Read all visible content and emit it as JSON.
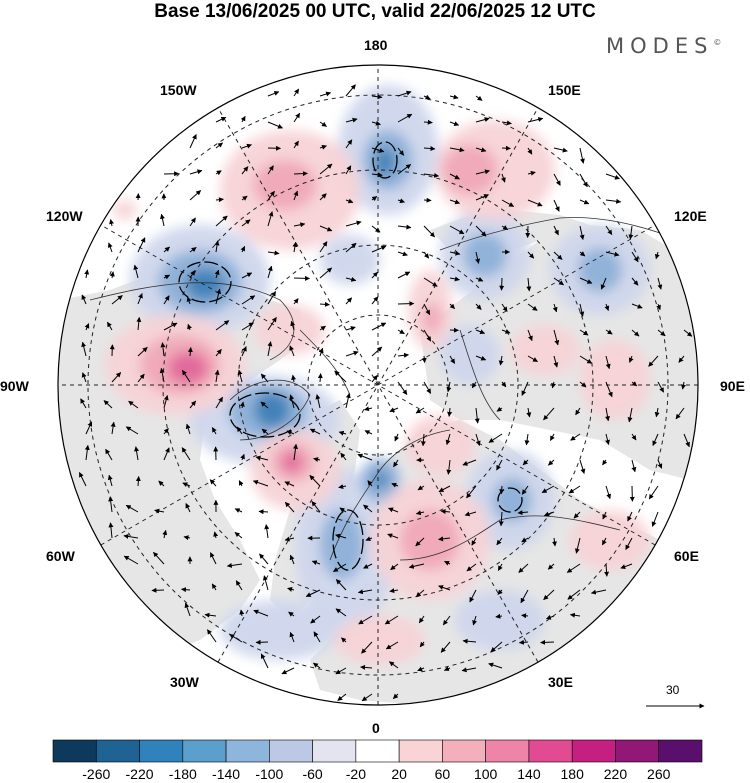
{
  "title": "Base 13/06/2025 00 UTC, valid 22/06/2025 12 UTC",
  "brand": {
    "name": "MODES",
    "mark": "©"
  },
  "longitude_labels": [
    {
      "id": "180",
      "text": "180"
    },
    {
      "id": "150E",
      "text": "150E"
    },
    {
      "id": "120E",
      "text": "120E"
    },
    {
      "id": "90E",
      "text": "90E"
    },
    {
      "id": "60E",
      "text": "60E"
    },
    {
      "id": "30E",
      "text": "30E"
    },
    {
      "id": "0",
      "text": "0"
    },
    {
      "id": "30W",
      "text": "30W"
    },
    {
      "id": "60W",
      "text": "60W"
    },
    {
      "id": "90W",
      "text": "90W"
    },
    {
      "id": "120W",
      "text": "120W"
    },
    {
      "id": "150W",
      "text": "150W"
    }
  ],
  "wind_scale": {
    "value": "30"
  },
  "colorbar": {
    "colors": [
      "#0d3a5c",
      "#1e6394",
      "#2f82bc",
      "#5b9fcd",
      "#8eb6dc",
      "#bcc9e5",
      "#e4e4f1",
      "#ffffff",
      "#f9d4d6",
      "#f4afbd",
      "#ee84a8",
      "#e24b94",
      "#c61f82",
      "#921877",
      "#5b0f6d"
    ],
    "ticks": [
      "-260",
      "-220",
      "-180",
      "-140",
      "-100",
      "-60",
      "-20",
      "20",
      "60",
      "100",
      "140",
      "180",
      "220",
      "260"
    ]
  },
  "anomaly_colors": {
    "neg_strong": "#3f7fb6",
    "neg_mid": "#8eb0d8",
    "neg_weak": "#cfd6ec",
    "pos_weak": "#f7d3d6",
    "pos_mid": "#f0a9b7",
    "pos_strong": "#e0669a",
    "land": "#e6e6e6"
  }
}
